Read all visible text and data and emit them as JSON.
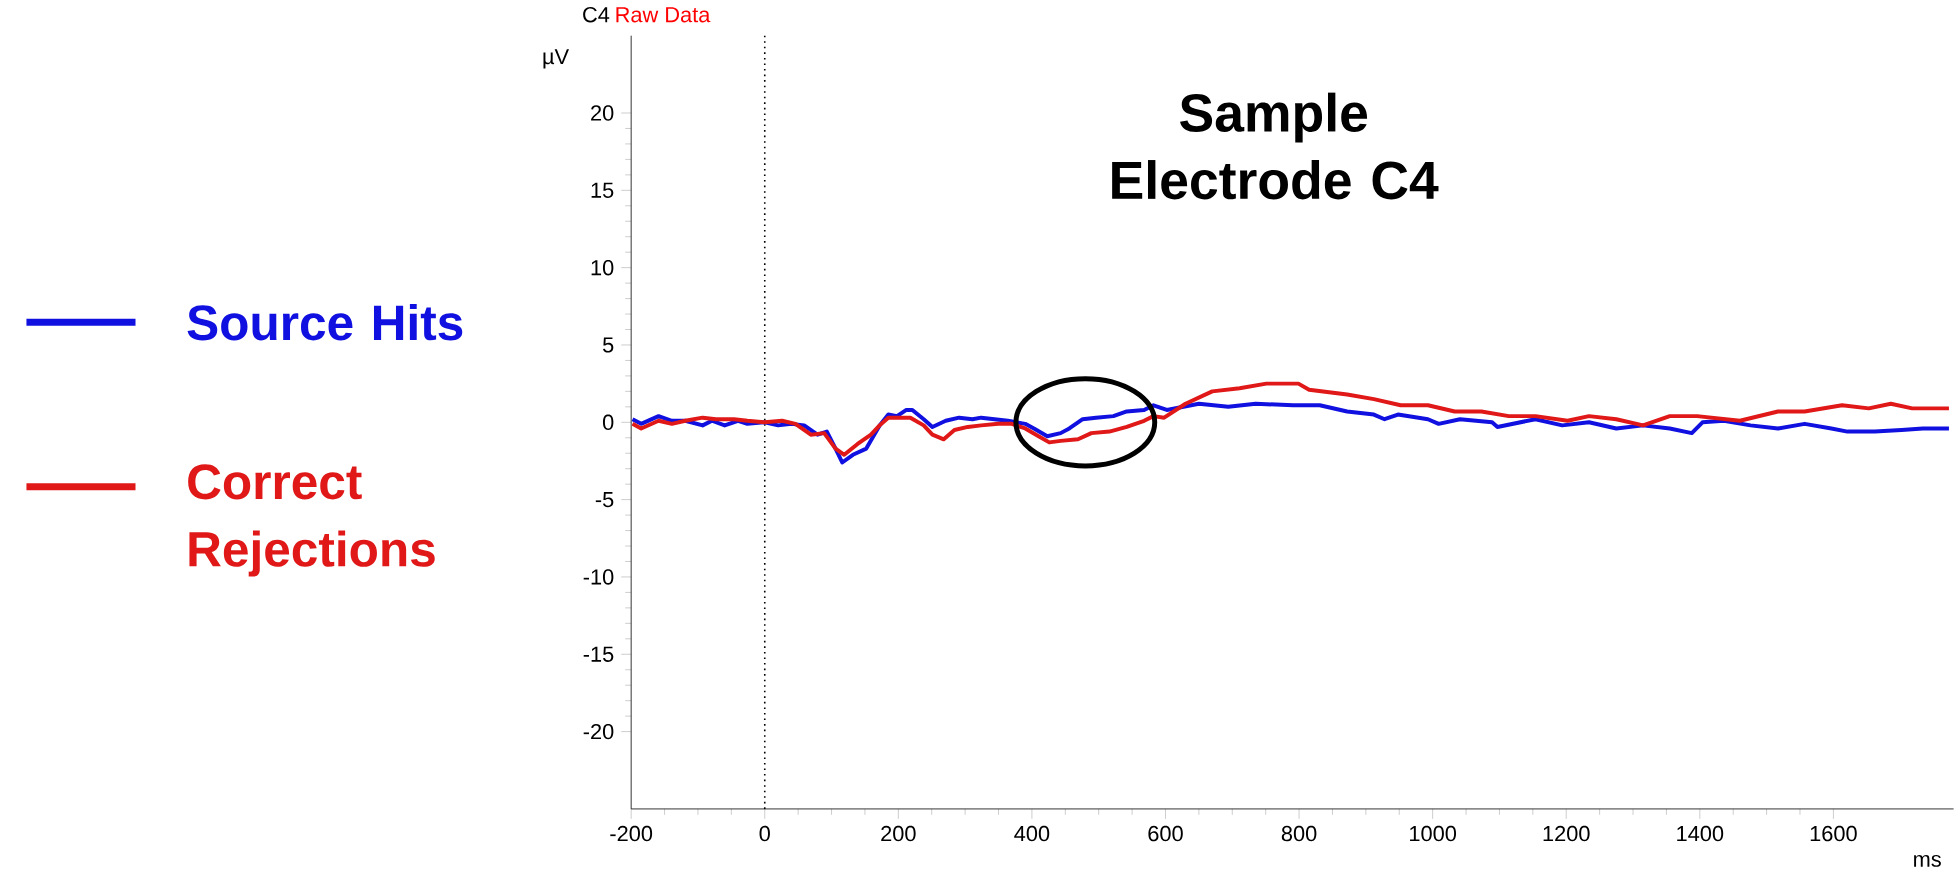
{
  "chart_data": {
    "type": "line",
    "title": "Sample Electrode C4",
    "xlabel": "ms",
    "ylabel": "µV",
    "annotations": [
      "C4",
      "Raw Data"
    ],
    "xlim": [
      -200,
      1780
    ],
    "xticks": [
      -200,
      0,
      200,
      400,
      600,
      800,
      1000,
      1200,
      1400,
      1600
    ],
    "ylim": [
      -25,
      25
    ],
    "yticks": [
      -20,
      -15,
      -10,
      -5,
      0,
      5,
      10,
      15,
      20
    ],
    "grid": false,
    "legend": "left",
    "marker": "none",
    "line_style": "solid",
    "ref_lines": [
      {
        "axis": "x",
        "value": 0,
        "color": "#000000",
        "line_style": "dotted"
      }
    ],
    "series": [
      {
        "name": "Source Hits",
        "color": "#1010e0",
        "x": [
          -198,
          -185,
          -159,
          -139,
          -119,
          -93,
          -79,
          -60,
          -40,
          -26,
          0,
          20,
          40,
          59,
          79,
          93,
          106,
          116,
          132,
          152,
          172,
          185,
          198,
          212,
          221,
          238,
          251,
          271,
          291,
          311,
          324,
          344,
          364,
          390,
          403,
          423,
          443,
          456,
          476,
          496,
          522,
          542,
          568,
          582,
          602,
          650,
          694,
          735,
          791,
          831,
          872,
          912,
          928,
          948,
          993,
          1009,
          1041,
          1089,
          1097,
          1154,
          1194,
          1234,
          1275,
          1315,
          1355,
          1388,
          1404,
          1436,
          1476,
          1517,
          1557,
          1597,
          1621,
          1662,
          1702,
          1734,
          1773
        ],
        "values": [
          0.2,
          -0.1,
          0.4,
          0.1,
          0.1,
          -0.2,
          0.1,
          -0.2,
          0.1,
          -0.1,
          0,
          -0.2,
          -0.1,
          -0.2,
          -0.8,
          -0.6,
          -1.7,
          -2.6,
          -2.1,
          -1.7,
          -0.2,
          0.5,
          0.4,
          0.8,
          0.8,
          0.2,
          -0.3,
          0.1,
          0.3,
          0.2,
          0.3,
          0.2,
          0.1,
          -0.1,
          -0.4,
          -0.9,
          -0.7,
          -0.4,
          0.2,
          0.3,
          0.4,
          0.7,
          0.8,
          1.1,
          0.8,
          1.2,
          1.0,
          1.2,
          1.1,
          1.1,
          0.7,
          0.5,
          0.2,
          0.5,
          0.2,
          -0.1,
          0.2,
          0,
          -0.3,
          0.2,
          -0.2,
          0,
          -0.4,
          -0.2,
          -0.4,
          -0.7,
          0,
          0.1,
          -0.2,
          -0.4,
          -0.1,
          -0.4,
          -0.6,
          -0.6,
          -0.5,
          -0.4,
          -0.4
        ]
      },
      {
        "name": "Correct Rejections",
        "color": "#e01818",
        "x": [
          -198,
          -185,
          -159,
          -139,
          -119,
          -93,
          -73,
          -46,
          -26,
          0,
          26,
          46,
          69,
          89,
          106,
          119,
          139,
          159,
          172,
          185,
          218,
          238,
          251,
          268,
          284,
          304,
          324,
          350,
          370,
          390,
          410,
          426,
          443,
          469,
          489,
          516,
          542,
          568,
          582,
          598,
          630,
          670,
          711,
          751,
          799,
          815,
          872,
          912,
          952,
          993,
          1033,
          1073,
          1114,
          1154,
          1202,
          1234,
          1275,
          1315,
          1355,
          1396,
          1460,
          1517,
          1557,
          1613,
          1653,
          1686,
          1718,
          1773
        ],
        "values": [
          -0.1,
          -0.4,
          0.1,
          -0.1,
          0.1,
          0.3,
          0.2,
          0.2,
          0.1,
          0,
          0.1,
          -0.1,
          -0.8,
          -0.7,
          -1.7,
          -2.1,
          -1.4,
          -0.8,
          -0.2,
          0.3,
          0.3,
          -0.2,
          -0.8,
          -1.1,
          -0.5,
          -0.3,
          -0.2,
          -0.1,
          -0.1,
          -0.4,
          -0.9,
          -1.3,
          -1.2,
          -1.1,
          -0.7,
          -0.6,
          -0.3,
          0.1,
          0.4,
          0.3,
          1.2,
          2.0,
          2.2,
          2.5,
          2.5,
          2.1,
          1.8,
          1.5,
          1.1,
          1.1,
          0.7,
          0.7,
          0.4,
          0.4,
          0.1,
          0.4,
          0.2,
          -0.2,
          0.4,
          0.4,
          0.1,
          0.7,
          0.7,
          1.1,
          0.9,
          1.2,
          0.9,
          0.9
        ]
      }
    ]
  }
}
